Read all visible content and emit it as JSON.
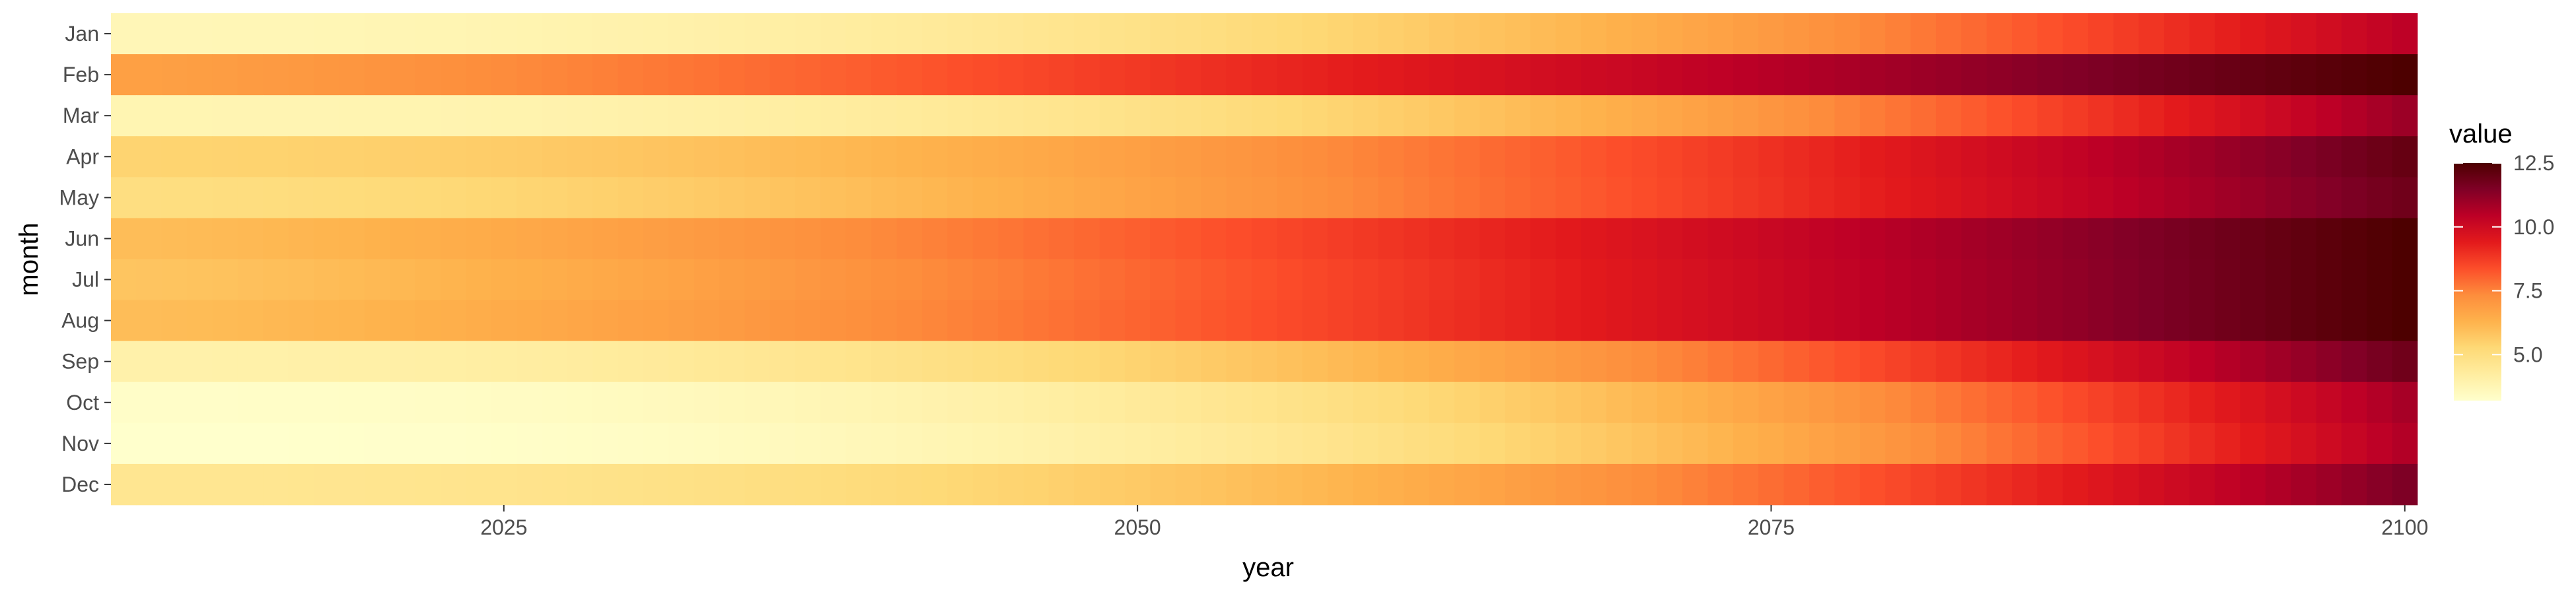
{
  "chart_data": {
    "type": "heatmap",
    "xlabel": "year",
    "ylabel": "month",
    "x_range": [
      2010,
      2100
    ],
    "x_ticks": [
      2025,
      2050,
      2075,
      2100
    ],
    "x_tick_labels": [
      "2025",
      "2050",
      "2075",
      "2100"
    ],
    "y_categories": [
      "Jan",
      "Feb",
      "Mar",
      "Apr",
      "May",
      "Jun",
      "Jul",
      "Aug",
      "Sep",
      "Oct",
      "Nov",
      "Dec"
    ],
    "legend": {
      "title": "value",
      "placement": "right",
      "range": [
        3.2,
        12.5
      ],
      "ticks": [
        5.0,
        7.5,
        10.0,
        12.5
      ],
      "tick_labels": [
        "5.0",
        "7.5",
        "10.0",
        "12.5"
      ]
    },
    "colors": [
      "#ffffcc",
      "#ffeda0",
      "#fed976",
      "#feb24c",
      "#fd8d3c",
      "#fc4e2a",
      "#e31a1c",
      "#bd0026",
      "#800026",
      "#4d0000"
    ],
    "grid": true,
    "series": [
      {
        "name": "Jan",
        "start": 3.7,
        "end": 10.4,
        "power": 2.2
      },
      {
        "name": "Feb",
        "start": 6.8,
        "end": 12.5,
        "power": 1.3
      },
      {
        "name": "Mar",
        "start": 3.8,
        "end": 11.0,
        "power": 2.4
      },
      {
        "name": "Apr",
        "start": 5.4,
        "end": 12.0,
        "power": 1.9
      },
      {
        "name": "May",
        "start": 5.0,
        "end": 11.8,
        "power": 1.7
      },
      {
        "name": "Jun",
        "start": 6.0,
        "end": 12.5,
        "power": 1.4
      },
      {
        "name": "Jul",
        "start": 5.8,
        "end": 12.5,
        "power": 1.4
      },
      {
        "name": "Aug",
        "start": 6.0,
        "end": 12.5,
        "power": 1.45
      },
      {
        "name": "Sep",
        "start": 4.0,
        "end": 11.8,
        "power": 2.1
      },
      {
        "name": "Oct",
        "start": 3.3,
        "end": 10.8,
        "power": 2.4
      },
      {
        "name": "Nov",
        "start": 3.2,
        "end": 10.6,
        "power": 2.5
      },
      {
        "name": "Dec",
        "start": 4.6,
        "end": 11.5,
        "power": 2.3
      }
    ]
  }
}
